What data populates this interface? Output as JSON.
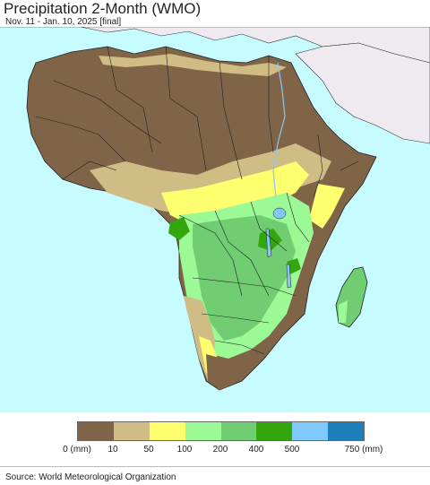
{
  "title": "Precipitation 2-Month (WMO)",
  "subtitle": "Nov. 11 - Jan. 10, 2025 [final]",
  "legend": {
    "items": [
      {
        "label": "0 (mm)",
        "color": "#7f6447"
      },
      {
        "label": "10",
        "color": "#d0bd85"
      },
      {
        "label": "50",
        "color": "#feff6e"
      },
      {
        "label": "100",
        "color": "#9cfa96"
      },
      {
        "label": "200",
        "color": "#71cd72"
      },
      {
        "label": "400",
        "color": "#34a60d"
      },
      {
        "label": "500",
        "color": "#80c9fa"
      },
      {
        "label": "750 (mm)",
        "color": "#1c7fb8"
      }
    ]
  },
  "colors": {
    "ocean": "#c6fbff",
    "non_data_land": "#efeaf0",
    "border": "#222222"
  },
  "source": "Source: World Meteorological Organization"
}
